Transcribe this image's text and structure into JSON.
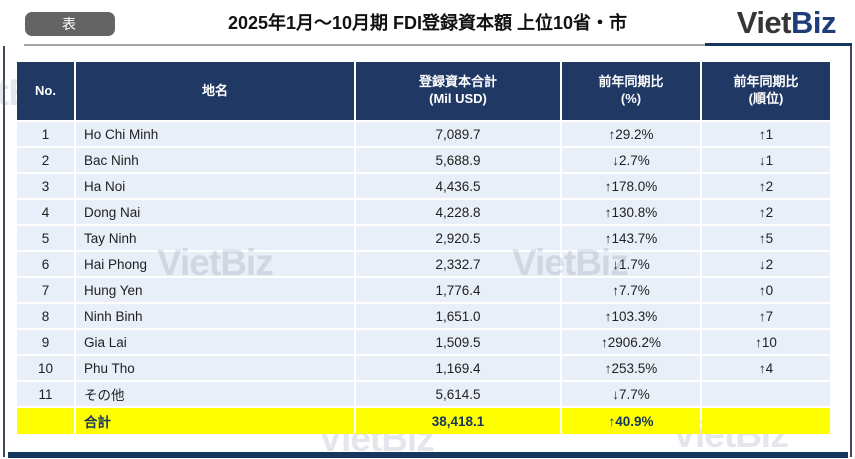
{
  "page": {
    "badge": "表",
    "title": "2025年1月～10月期 FDI登録資本額 上位10省・市",
    "logo": {
      "part1": "Viet",
      "part2": "Biz"
    },
    "watermark": "VietBiz"
  },
  "colors": {
    "header_bg": "#1f3864",
    "row_bg": "#e8eff8",
    "total_bg": "#ffff00",
    "total_text": "#17365d",
    "badge_bg": "#646464",
    "logo_viet": "#363636",
    "logo_biz": "#1f3d7a",
    "rule_gray": "#a6a6a6",
    "bottom_bar": "#17365d"
  },
  "table": {
    "columns": [
      {
        "label": "No.",
        "sub": ""
      },
      {
        "label": "地名",
        "sub": ""
      },
      {
        "label": "登録資本合計",
        "sub": "(Mil USD)"
      },
      {
        "label": "前年同期比",
        "sub": "(%)"
      },
      {
        "label": "前年同期比",
        "sub": "(順位)"
      }
    ],
    "rows": [
      {
        "no": "1",
        "name": "Ho Chi Minh",
        "capital": "7,089.7",
        "yoy": "↑29.2%",
        "rank": "↑1"
      },
      {
        "no": "2",
        "name": "Bac Ninh",
        "capital": "5,688.9",
        "yoy": "↓2.7%",
        "rank": "↓1"
      },
      {
        "no": "3",
        "name": "Ha Noi",
        "capital": "4,436.5",
        "yoy": "↑178.0%",
        "rank": "↑2"
      },
      {
        "no": "4",
        "name": "Dong Nai",
        "capital": "4,228.8",
        "yoy": "↑130.8%",
        "rank": "↑2"
      },
      {
        "no": "5",
        "name": "Tay Ninh",
        "capital": "2,920.5",
        "yoy": "↑143.7%",
        "rank": "↑5"
      },
      {
        "no": "6",
        "name": "Hai Phong",
        "capital": "2,332.7",
        "yoy": "↓1.7%",
        "rank": "↓2"
      },
      {
        "no": "7",
        "name": "Hung Yen",
        "capital": "1,776.4",
        "yoy": "↑7.7%",
        "rank": "↑0"
      },
      {
        "no": "8",
        "name": "Ninh Binh",
        "capital": "1,651.0",
        "yoy": "↑103.3%",
        "rank": "↑7"
      },
      {
        "no": "9",
        "name": "Gia Lai",
        "capital": "1,509.5",
        "yoy": "↑2906.2%",
        "rank": "↑10"
      },
      {
        "no": "10",
        "name": "Phu Tho",
        "capital": "1,169.4",
        "yoy": "↑253.5%",
        "rank": "↑4"
      },
      {
        "no": "11",
        "name": "その他",
        "capital": "5,614.5",
        "yoy": "↓7.7%",
        "rank": ""
      }
    ],
    "total": {
      "no": "",
      "name": "合計",
      "capital": "38,418.1",
      "yoy": "↑40.9%",
      "rank": ""
    }
  }
}
